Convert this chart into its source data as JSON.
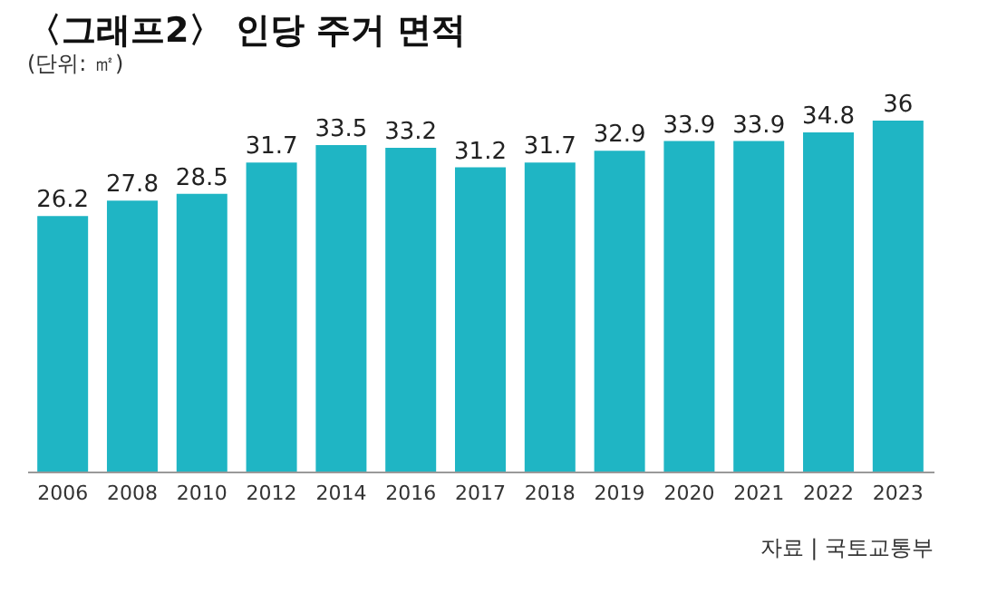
{
  "chart_data": {
    "type": "bar",
    "title": "〈그래프2〉 인당 주거 면적",
    "subtitle": "(단위: ㎡)",
    "categories": [
      "2006",
      "2008",
      "2010",
      "2012",
      "2014",
      "2016",
      "2017",
      "2018",
      "2019",
      "2020",
      "2021",
      "2022",
      "2023"
    ],
    "values": [
      26.2,
      27.8,
      28.5,
      31.7,
      33.5,
      33.2,
      31.2,
      31.7,
      32.9,
      33.9,
      33.9,
      34.8,
      36
    ],
    "color": "#1fb5c4",
    "data_labels": true,
    "grid": false,
    "annotations": [
      "자료 | 국토교통부"
    ]
  }
}
